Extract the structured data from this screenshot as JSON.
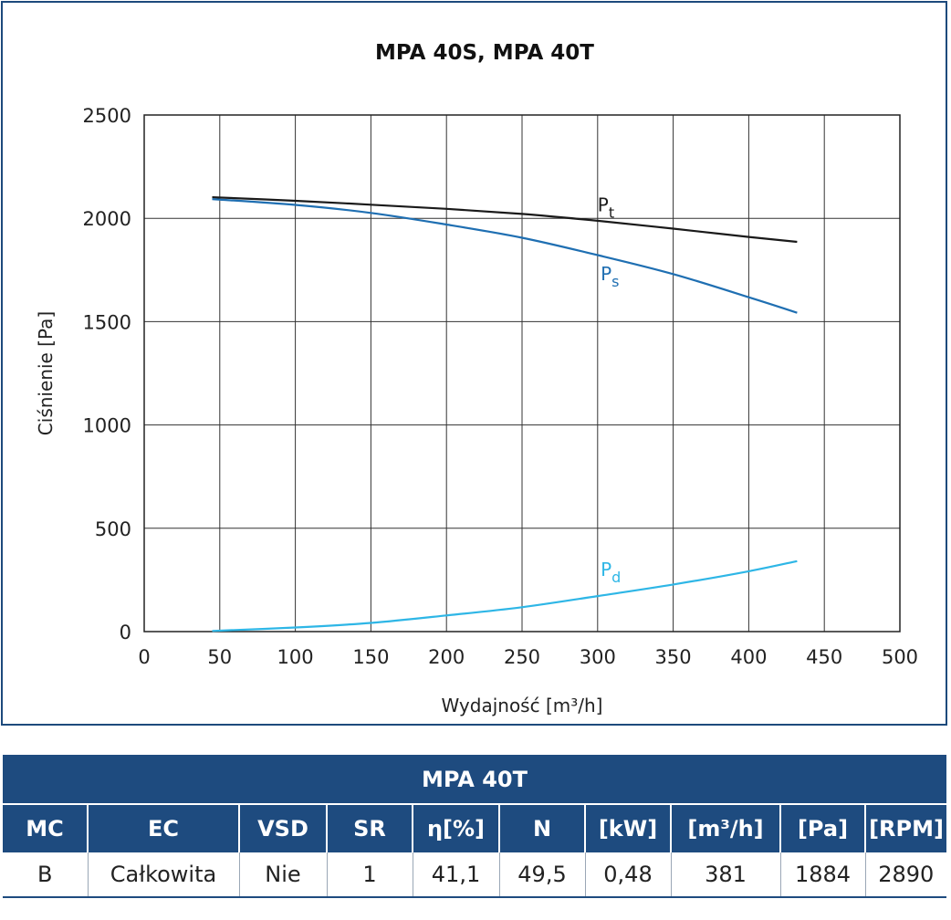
{
  "chart_data": {
    "type": "line",
    "title": "MPA 40S, MPA 40T",
    "xlabel": "Wydajność [m³/h]",
    "ylabel": "Ciśnienie [Pa]",
    "xlim": [
      0,
      500
    ],
    "ylim": [
      0,
      2500
    ],
    "xticks": [
      0,
      50,
      100,
      150,
      200,
      250,
      300,
      350,
      400,
      450,
      500
    ],
    "yticks": [
      0,
      500,
      1000,
      1500,
      2000,
      2500
    ],
    "grid": true,
    "series": [
      {
        "name": "Pt",
        "label_main": "P",
        "label_sub": "t",
        "color": "#1a1a1a",
        "x": [
          45,
          100,
          150,
          200,
          250,
          300,
          350,
          400,
          432
        ],
        "y": [
          2102,
          2085,
          2066,
          2046,
          2021,
          1988,
          1950,
          1910,
          1886
        ]
      },
      {
        "name": "Ps",
        "label_main": "P",
        "label_sub": "s",
        "color": "#1f6fb2",
        "x": [
          45,
          100,
          150,
          200,
          250,
          300,
          350,
          400,
          432
        ],
        "y": [
          2093,
          2065,
          2026,
          1970,
          1906,
          1822,
          1730,
          1618,
          1543
        ]
      },
      {
        "name": "Pd",
        "label_main": "P",
        "label_sub": "d",
        "color": "#2eb6e6",
        "x": [
          45,
          100,
          150,
          200,
          250,
          300,
          350,
          400,
          432
        ],
        "y": [
          3,
          20,
          42,
          78,
          118,
          172,
          228,
          292,
          341
        ]
      }
    ]
  },
  "table": {
    "title": "MPA 40T",
    "headers": [
      "MC",
      "EC",
      "VSD",
      "SR",
      "η[%]",
      "N",
      "[kW]",
      "[m³/h]",
      "[Pa]",
      "[RPM]"
    ],
    "row": [
      "B",
      "Całkowita",
      "Nie",
      "1",
      "41,1",
      "49,5",
      "0,48",
      "381",
      "1884",
      "2890"
    ],
    "header_bg": "#1e4b7f"
  }
}
